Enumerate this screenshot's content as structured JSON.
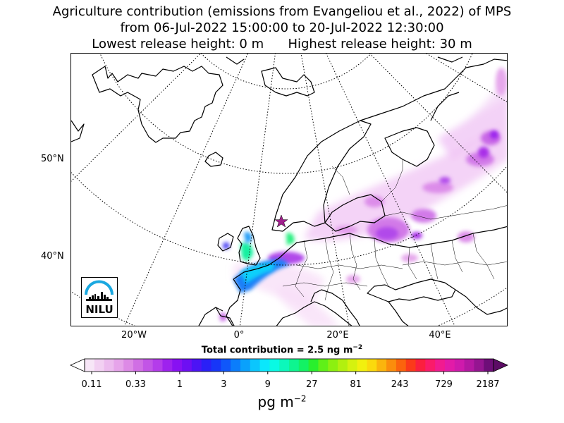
{
  "title": {
    "line1": "Agriculture contribution (emissions from Evangeliou et al., 2022) of MPS",
    "line2": "from 06-Jul-2022 15:00:00 to 20-Jul-2022 12:30:00",
    "line3": "Lowest release height: 0 m      Highest release height: 30 m"
  },
  "map": {
    "lat_labels": [
      "50°N",
      "40°N"
    ],
    "lon_labels": [
      "20°W",
      "0°",
      "20°E",
      "40°E"
    ],
    "release_site_marker": "star",
    "marker_color": "#a0208c"
  },
  "total": {
    "prefix": "Total contribution = 2.5 ng m",
    "exponent": "−2"
  },
  "colorbar": {
    "tick_labels": [
      "0.11",
      "0.33",
      "1",
      "3",
      "9",
      "27",
      "81",
      "243",
      "729",
      "2187"
    ],
    "unit_base": "pg m",
    "unit_exponent": "−2",
    "colors": [
      "#f7e6f7",
      "#f2d0f2",
      "#ecbbee",
      "#e6a4ea",
      "#dd8ae6",
      "#d06fe4",
      "#c255e6",
      "#b43cea",
      "#9e22ee",
      "#8811f2",
      "#6e0ff3",
      "#4c14f5",
      "#2a20f7",
      "#1736f8",
      "#1057fa",
      "#0b7dfb",
      "#0aa1fc",
      "#0bc6fd",
      "#0ae7fc",
      "#09fae4",
      "#0cf8bb",
      "#0ef590",
      "#13f264",
      "#29ef2d",
      "#5ff018",
      "#8cf010",
      "#b2f00f",
      "#d5f20f",
      "#f2f00e",
      "#fbd90d",
      "#fbb40d",
      "#fb8d0c",
      "#fb640d",
      "#fb3a1a",
      "#fb1f3f",
      "#fa1b6a",
      "#f11b90",
      "#e21ba8",
      "#cf1aac",
      "#b418a2",
      "#951591",
      "#6e0e78"
    ],
    "arrow_left_color": "#ffffff",
    "arrow_right_color": "#5c0c65"
  },
  "logo": {
    "text": "NILU",
    "accent_color": "#1aa8e0"
  }
}
